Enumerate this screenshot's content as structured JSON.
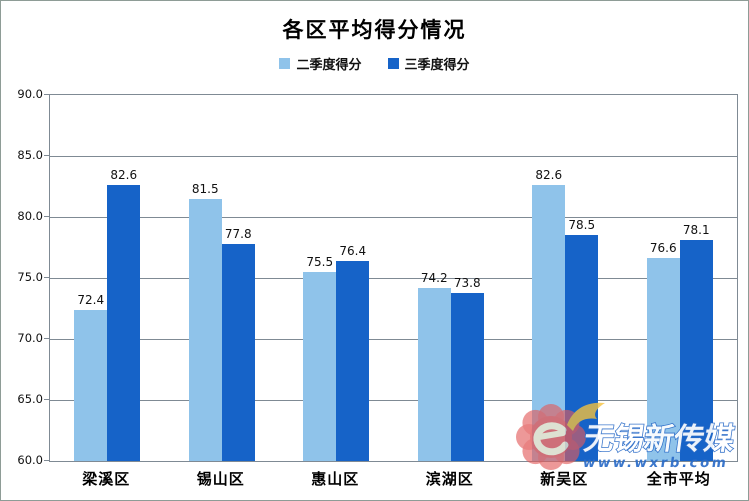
{
  "chart_data": {
    "type": "bar",
    "title": "各区平均得分情况",
    "categories": [
      "梁溪区",
      "锡山区",
      "惠山区",
      "滨湖区",
      "新吴区",
      "全市平均"
    ],
    "series": [
      {
        "name": "二季度得分",
        "color": "#8FC3EA",
        "values": [
          72.4,
          81.5,
          75.5,
          74.2,
          82.6,
          76.6
        ]
      },
      {
        "name": "三季度得分",
        "color": "#1663C8",
        "values": [
          82.6,
          77.8,
          76.4,
          73.8,
          78.5,
          78.1
        ]
      }
    ],
    "ylim": [
      60,
      90
    ],
    "ytick_step": 5,
    "ytick_labels": [
      "60.0",
      "65.0",
      "70.0",
      "75.0",
      "80.0",
      "85.0",
      "90.0"
    ],
    "xlabel": "",
    "ylabel": "",
    "grid": "horizontal",
    "legend_position": "top",
    "data_labels": true
  },
  "watermark": {
    "brand": "无锡新传媒",
    "url": "www.wxrb.com",
    "brand_color": "#2B6CC8",
    "flower_color": "#E25B5B",
    "flame_color": "#F6C23D"
  }
}
